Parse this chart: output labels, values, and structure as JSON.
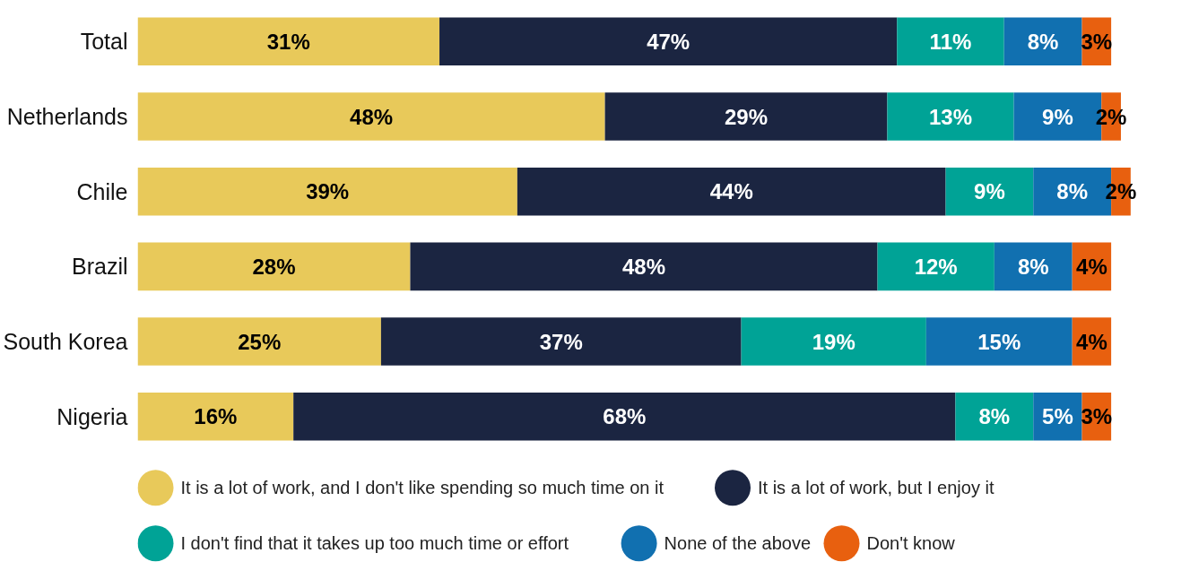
{
  "chart_data": {
    "type": "bar",
    "orientation": "horizontal",
    "stacked": true,
    "legend": "bottom",
    "grid": false,
    "tick_labels": "y",
    "categories": [
      "Total",
      "Netherlands",
      "Chile",
      "Brazil",
      "South Korea",
      "Nigeria"
    ],
    "series": [
      {
        "name": "It is a lot of work, and I don't like spending so much time on it",
        "color": "#e8c95a",
        "values": [
          31,
          48,
          39,
          28,
          25,
          16
        ],
        "value_labels": [
          "31%",
          "48%",
          "39%",
          "28%",
          "25%",
          "16%"
        ]
      },
      {
        "name": "It is a lot of work, but I enjoy it",
        "color": "#1b2541",
        "values": [
          47,
          29,
          44,
          48,
          37,
          68
        ],
        "value_labels": [
          "47%",
          "29%",
          "44%",
          "48%",
          "37%",
          "68%"
        ]
      },
      {
        "name": "I don't find that it takes up too much time or effort",
        "color": "#00a396",
        "values": [
          11,
          13,
          9,
          12,
          19,
          8
        ],
        "value_labels": [
          "11%",
          "13%",
          "9%",
          "12%",
          "19%",
          "8%"
        ]
      },
      {
        "name": "None of the above",
        "color": "#1170b0",
        "values": [
          8,
          9,
          8,
          8,
          15,
          5
        ],
        "value_labels": [
          "8%",
          "9%",
          "8%",
          "8%",
          "15%",
          "5%"
        ]
      },
      {
        "name": "Don't know",
        "color": "#e8600f",
        "values": [
          3,
          2,
          2,
          4,
          4,
          3
        ],
        "value_labels": [
          "3%",
          "2%",
          "2%",
          "4%",
          "4%",
          "3%"
        ]
      }
    ]
  }
}
